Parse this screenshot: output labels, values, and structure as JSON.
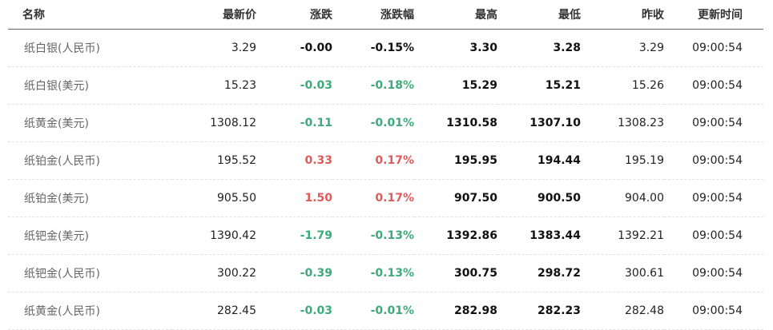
{
  "colors": {
    "up": "#e05a5a",
    "down": "#3cab7a",
    "flat": "#111111"
  },
  "headers": {
    "name": "名称",
    "latest": "最新价",
    "change": "涨跌",
    "change_pct": "涨跌幅",
    "high": "最高",
    "low": "最低",
    "prev_close": "昨收",
    "update_time": "更新时间"
  },
  "rows": [
    {
      "name": "纸白银(人民币)",
      "latest": "3.29",
      "change": "-0.00",
      "change_pct": "-0.15%",
      "high": "3.30",
      "low": "3.28",
      "prev_close": "3.29",
      "time": "09:00:54",
      "trend": "flat"
    },
    {
      "name": "纸白银(美元)",
      "latest": "15.23",
      "change": "-0.03",
      "change_pct": "-0.18%",
      "high": "15.29",
      "low": "15.21",
      "prev_close": "15.26",
      "time": "09:00:54",
      "trend": "down"
    },
    {
      "name": "纸黄金(美元)",
      "latest": "1308.12",
      "change": "-0.11",
      "change_pct": "-0.01%",
      "high": "1310.58",
      "low": "1307.10",
      "prev_close": "1308.23",
      "time": "09:00:54",
      "trend": "down"
    },
    {
      "name": "纸铂金(人民币)",
      "latest": "195.52",
      "change": "0.33",
      "change_pct": "0.17%",
      "high": "195.95",
      "low": "194.44",
      "prev_close": "195.19",
      "time": "09:00:54",
      "trend": "up"
    },
    {
      "name": "纸铂金(美元)",
      "latest": "905.50",
      "change": "1.50",
      "change_pct": "0.17%",
      "high": "907.50",
      "low": "900.50",
      "prev_close": "904.00",
      "time": "09:00:54",
      "trend": "up"
    },
    {
      "name": "纸钯金(美元)",
      "latest": "1390.42",
      "change": "-1.79",
      "change_pct": "-0.13%",
      "high": "1392.86",
      "low": "1383.44",
      "prev_close": "1392.21",
      "time": "09:00:54",
      "trend": "down"
    },
    {
      "name": "纸钯金(人民币)",
      "latest": "300.22",
      "change": "-0.39",
      "change_pct": "-0.13%",
      "high": "300.75",
      "low": "298.72",
      "prev_close": "300.61",
      "time": "09:00:54",
      "trend": "down"
    },
    {
      "name": "纸黄金(人民币)",
      "latest": "282.45",
      "change": "-0.03",
      "change_pct": "-0.01%",
      "high": "282.98",
      "low": "282.23",
      "prev_close": "282.48",
      "time": "09:00:54",
      "trend": "down"
    }
  ]
}
